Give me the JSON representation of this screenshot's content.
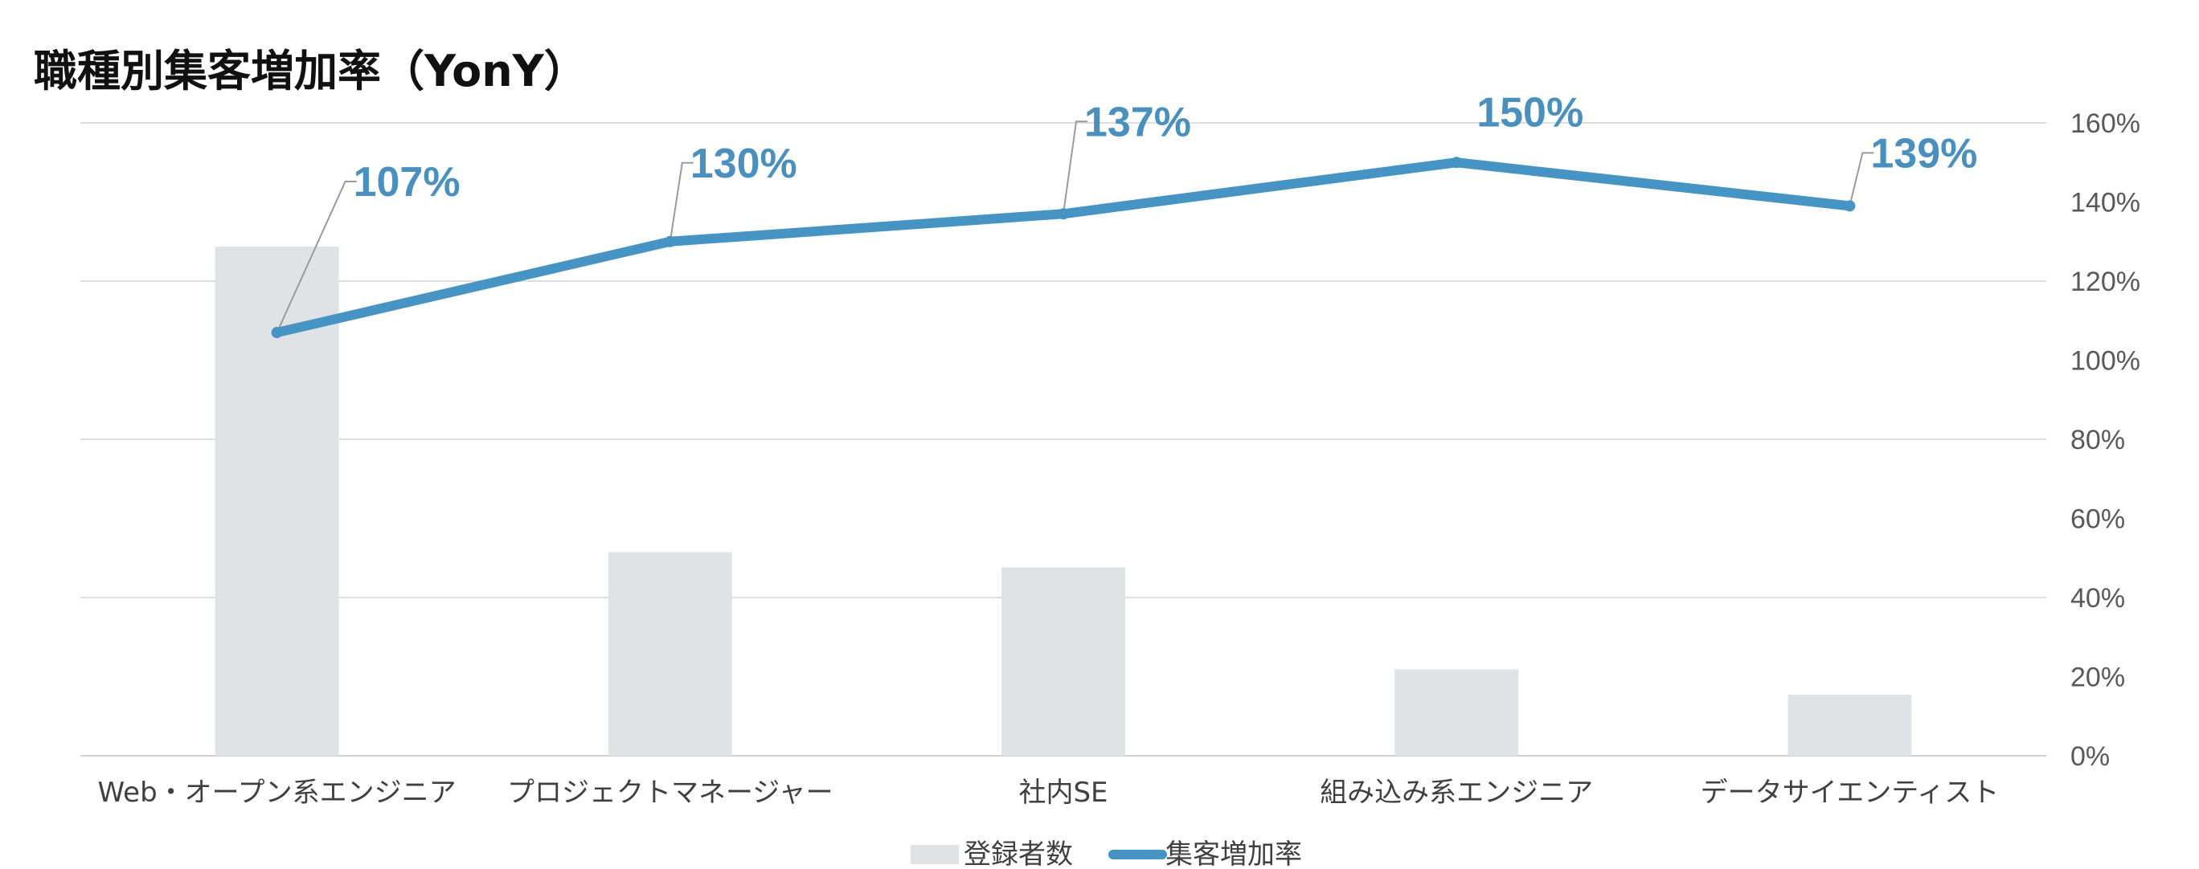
{
  "chart_data": {
    "type": "bar+line",
    "title": "職種別集客増加率（YonY）",
    "categories": [
      "Web・オープン系エンジニア",
      "プロジェクトマネージャー",
      "社内SE",
      "組み込み系エンジニア",
      "データサイエンティスト"
    ],
    "series": [
      {
        "name": "登録者数",
        "type": "bar",
        "axis": "primary",
        "color": "#e0e3e6",
        "values": [
          100,
          40,
          37,
          17,
          12
        ]
      },
      {
        "name": "集客増加率",
        "type": "line",
        "axis": "secondary",
        "color": "#4594c4",
        "values": [
          107,
          130,
          137,
          150,
          139
        ],
        "data_labels": [
          "107%",
          "130%",
          "137%",
          "150%",
          "139%"
        ]
      }
    ],
    "primary_axis": {
      "ylim": [
        0,
        100
      ],
      "visible": false
    },
    "secondary_axis": {
      "ylim": [
        0,
        160
      ],
      "ticks": [
        0,
        20,
        40,
        60,
        80,
        100,
        120,
        140,
        160
      ],
      "tick_labels": [
        "0%",
        "20%",
        "40%",
        "60%",
        "80%",
        "100%",
        "120%",
        "140%",
        "160%"
      ],
      "position": "right"
    },
    "grid": true,
    "legend": {
      "position": "bottom"
    }
  }
}
